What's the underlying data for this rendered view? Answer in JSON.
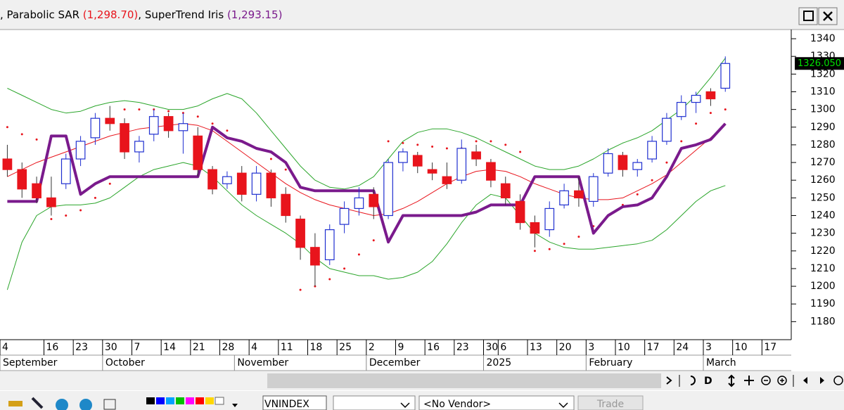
{
  "header": {
    "indicators": [
      {
        "name": ", Parabolic SAR ",
        "value": "(1,298.70)"
      },
      {
        "name": ", SuperTrend Iris ",
        "value": "(1,293.15)"
      }
    ]
  },
  "chart_data": {
    "type": "candlestick",
    "up_color": "#1f2fd0",
    "down_color": "#e8141c",
    "ylim": [
      1171,
      1344
    ],
    "yticks": [
      1180,
      1190,
      1200,
      1210,
      1220,
      1230,
      1240,
      1250,
      1260,
      1270,
      1280,
      1290,
      1300,
      1310,
      1320,
      1330,
      1340
    ],
    "last_price_label": "1326.050",
    "categories": [
      "4",
      null,
      null,
      "16",
      null,
      "23",
      null,
      "30",
      null,
      "7",
      null,
      "14",
      null,
      "21",
      null,
      "28",
      null,
      "4",
      null,
      "11",
      null,
      "18",
      null,
      "25",
      null,
      "2",
      null,
      "9",
      null,
      "16",
      null,
      "23",
      null,
      "30",
      "6",
      null,
      "13",
      null,
      "20",
      null,
      "3",
      null,
      "10",
      null,
      "17",
      null,
      "24",
      null,
      "3",
      null,
      "10",
      null,
      "17",
      null
    ],
    "month_labels": [
      "September",
      null,
      null,
      null,
      null,
      null,
      null,
      "October",
      null,
      null,
      null,
      null,
      null,
      null,
      null,
      null,
      "November",
      null,
      null,
      null,
      null,
      null,
      null,
      null,
      null,
      "December",
      null,
      null,
      null,
      null,
      null,
      null,
      null,
      "2025",
      null,
      null,
      null,
      null,
      null,
      null,
      "February",
      null,
      null,
      null,
      null,
      null,
      null,
      null,
      "March",
      null,
      null,
      null,
      null,
      null
    ],
    "ohlc": [
      [
        1272,
        1280,
        1262,
        1266
      ],
      [
        1266,
        1270,
        1250,
        1255
      ],
      [
        1258,
        1262,
        1247,
        1250
      ],
      [
        1250,
        1262,
        1240,
        1245
      ],
      [
        1258,
        1275,
        1255,
        1272
      ],
      [
        1272,
        1285,
        1268,
        1282
      ],
      [
        1284,
        1298,
        1280,
        1295
      ],
      [
        1295,
        1302,
        1288,
        1292
      ],
      [
        1292,
        1295,
        1272,
        1276
      ],
      [
        1276,
        1285,
        1270,
        1282
      ],
      [
        1286,
        1300,
        1282,
        1296
      ],
      [
        1296,
        1298,
        1284,
        1288
      ],
      [
        1288,
        1298,
        1275,
        1292
      ],
      [
        1285,
        1290,
        1262,
        1266
      ],
      [
        1266,
        1268,
        1252,
        1255
      ],
      [
        1258,
        1265,
        1255,
        1262
      ],
      [
        1264,
        1268,
        1248,
        1252
      ],
      [
        1252,
        1268,
        1248,
        1264
      ],
      [
        1264,
        1266,
        1245,
        1250
      ],
      [
        1252,
        1256,
        1236,
        1240
      ],
      [
        1238,
        1240,
        1215,
        1222
      ],
      [
        1222,
        1230,
        1200,
        1212
      ],
      [
        1215,
        1235,
        1212,
        1232
      ],
      [
        1235,
        1248,
        1230,
        1244
      ],
      [
        1244,
        1256,
        1240,
        1250
      ],
      [
        1252,
        1256,
        1238,
        1245
      ],
      [
        1240,
        1272,
        1238,
        1270
      ],
      [
        1270,
        1278,
        1265,
        1276
      ],
      [
        1274,
        1276,
        1264,
        1268
      ],
      [
        1266,
        1270,
        1260,
        1264
      ],
      [
        1262,
        1270,
        1255,
        1258
      ],
      [
        1260,
        1283,
        1258,
        1278
      ],
      [
        1276,
        1280,
        1268,
        1272
      ],
      [
        1270,
        1272,
        1256,
        1260
      ],
      [
        1258,
        1262,
        1246,
        1250
      ],
      [
        1248,
        1252,
        1232,
        1236
      ],
      [
        1236,
        1240,
        1222,
        1230
      ],
      [
        1232,
        1248,
        1228,
        1244
      ],
      [
        1246,
        1258,
        1244,
        1254
      ],
      [
        1254,
        1262,
        1245,
        1250
      ],
      [
        1248,
        1264,
        1245,
        1262
      ],
      [
        1264,
        1278,
        1262,
        1275
      ],
      [
        1274,
        1276,
        1262,
        1266
      ],
      [
        1266,
        1272,
        1262,
        1270
      ],
      [
        1272,
        1285,
        1270,
        1282
      ],
      [
        1282,
        1298,
        1280,
        1295
      ],
      [
        1296,
        1308,
        1294,
        1304
      ],
      [
        1304,
        1310,
        1298,
        1308
      ],
      [
        1310,
        1312,
        1302,
        1306
      ],
      [
        1312,
        1330,
        1310,
        1326
      ],
      null,
      null,
      null,
      null
    ],
    "series": [
      {
        "style": "line",
        "color": "#2aa52a",
        "width": 1,
        "values": [
          1312,
          1308,
          1304,
          1300,
          1298,
          1299,
          1302,
          1304,
          1305,
          1304,
          1302,
          1300,
          1300,
          1302,
          1306,
          1309,
          1306,
          1298,
          1288,
          1278,
          1268,
          1260,
          1256,
          1255,
          1257,
          1262,
          1272,
          1282,
          1287,
          1289,
          1289,
          1287,
          1284,
          1280,
          1276,
          1272,
          1268,
          1266,
          1266,
          1268,
          1272,
          1277,
          1281,
          1284,
          1288,
          1294,
          1300,
          1308,
          1318,
          1329,
          null,
          null,
          null,
          null
        ]
      },
      {
        "style": "line",
        "color": "#e8141c",
        "width": 1,
        "values": [
          1262,
          1266,
          1270,
          1273,
          1276,
          1279,
          1282,
          1285,
          1287,
          1289,
          1290,
          1291,
          1292,
          1291,
          1288,
          1282,
          1276,
          1270,
          1264,
          1258,
          1253,
          1249,
          1246,
          1244,
          1242,
          1240,
          1241,
          1244,
          1248,
          1253,
          1258,
          1262,
          1265,
          1266,
          1265,
          1262,
          1258,
          1255,
          1252,
          1250,
          1249,
          1249,
          1250,
          1254,
          1258,
          1263,
          1270,
          1277,
          1284,
          1292,
          null,
          null,
          null,
          null
        ]
      },
      {
        "style": "line",
        "color": "#2aa52a",
        "width": 1,
        "values": [
          1198,
          1225,
          1240,
          1245,
          1246,
          1246,
          1247,
          1250,
          1256,
          1262,
          1266,
          1268,
          1270,
          1268,
          1262,
          1254,
          1246,
          1240,
          1235,
          1230,
          1224,
          1216,
          1210,
          1208,
          1206,
          1206,
          1204,
          1205,
          1208,
          1214,
          1224,
          1236,
          1246,
          1252,
          1250,
          1240,
          1230,
          1225,
          1222,
          1221,
          1221,
          1222,
          1223,
          1224,
          1226,
          1232,
          1240,
          1248,
          1254,
          1257,
          null,
          null,
          null,
          null
        ]
      },
      {
        "style": "dots",
        "color": "#e8141c",
        "width": 2,
        "values": [
          1290,
          1286,
          1283,
          1238,
          1240,
          1243,
          1250,
          1258,
          1300,
          1300,
          1300,
          1299,
          1298,
          1296,
          1292,
          1288,
          1282,
          1278,
          1272,
          1266,
          1198,
          1200,
          1204,
          1210,
          1218,
          1226,
          1282,
          1281,
          1280,
          1279,
          1278,
          1278,
          1282,
          1282,
          1280,
          1276,
          1220,
          1221,
          1224,
          1228,
          1234,
          1240,
          1246,
          1252,
          1260,
          1270,
          1282,
          1292,
          1298,
          1300,
          null,
          null,
          null,
          null
        ]
      },
      {
        "style": "line",
        "color": "#7a1a8c",
        "width": 4,
        "values": [
          1248,
          1248,
          1248,
          1285,
          1285,
          1252,
          1258,
          1262,
          1262,
          1262,
          1262,
          1262,
          1262,
          1262,
          1290,
          1284,
          1282,
          1278,
          1276,
          1270,
          1256,
          1254,
          1254,
          1254,
          1254,
          1254,
          1225,
          1240,
          1240,
          1240,
          1240,
          1240,
          1242,
          1246,
          1246,
          1246,
          1262,
          1262,
          1262,
          1262,
          1230,
          1240,
          1245,
          1246,
          1250,
          1262,
          1278,
          1280,
          1283,
          1292,
          null,
          null,
          null,
          null
        ]
      }
    ]
  },
  "toolbar": {
    "symbol": "VNINDEX",
    "vendor": "<No Vendor>",
    "trade": "Trade",
    "scroll_buttons": "D"
  }
}
